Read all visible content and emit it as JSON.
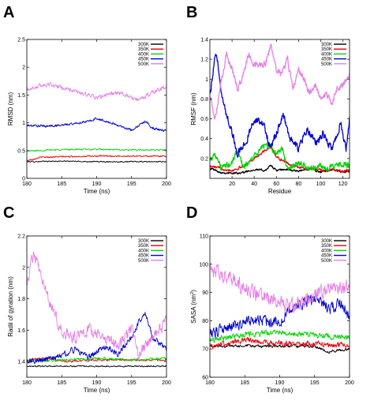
{
  "chart_data": [
    {
      "panel": "A",
      "type": "line",
      "xlabel": "Time (ns)",
      "ylabel": "RMSD (nm)",
      "ylabel_sup": "",
      "xlim": [
        180,
        200
      ],
      "ylim": [
        0,
        2.5
      ],
      "xticks": [
        180,
        185,
        190,
        195,
        200
      ],
      "yticks": [
        0,
        0.5,
        1,
        1.5,
        2,
        2.5
      ],
      "ytick_labels": [
        "0",
        "0.5",
        "1",
        "1.5",
        "2",
        "2.5"
      ],
      "series": [
        {
          "name": "300K",
          "color": "#000000",
          "amp": 0.015,
          "x": [
            180,
            185,
            190,
            195,
            200
          ],
          "y": [
            0.3,
            0.31,
            0.3,
            0.3,
            0.3
          ]
        },
        {
          "name": "350K",
          "color": "#e8000b",
          "amp": 0.02,
          "x": [
            180,
            182,
            185,
            190,
            195,
            200
          ],
          "y": [
            0.32,
            0.38,
            0.39,
            0.4,
            0.4,
            0.4
          ]
        },
        {
          "name": "400K",
          "color": "#00d400",
          "amp": 0.02,
          "x": [
            180,
            185,
            190,
            195,
            200
          ],
          "y": [
            0.49,
            0.52,
            0.52,
            0.51,
            0.51
          ]
        },
        {
          "name": "450K",
          "color": "#0000d0",
          "amp": 0.035,
          "x": [
            180,
            183,
            186,
            189,
            190,
            192,
            195,
            197,
            198,
            200
          ],
          "y": [
            0.95,
            0.94,
            0.97,
            1.03,
            1.08,
            1.0,
            0.87,
            1.03,
            0.9,
            0.85
          ]
        },
        {
          "name": "500K",
          "color": "#e67ee6",
          "amp": 0.06,
          "x": [
            180,
            183,
            186,
            190,
            193,
            196,
            198,
            200
          ],
          "y": [
            1.6,
            1.7,
            1.6,
            1.45,
            1.55,
            1.4,
            1.55,
            1.65
          ]
        }
      ]
    },
    {
      "panel": "B",
      "type": "line",
      "xlabel": "Residue",
      "ylabel": "RMSF (nm)",
      "ylabel_sup": "",
      "xlim": [
        0,
        126
      ],
      "ylim": [
        0,
        1.4
      ],
      "xticks": [
        20,
        40,
        60,
        80,
        100,
        120
      ],
      "yticks": [
        0.2,
        0.4,
        0.6,
        0.8,
        1,
        1.2,
        1.4
      ],
      "ytick_labels": [
        "0.2",
        "0.4",
        "0.6",
        "0.8",
        "1",
        "1.2",
        "1.4"
      ],
      "series": [
        {
          "name": "300K",
          "color": "#000000",
          "amp": 0.015,
          "x": [
            1,
            10,
            20,
            30,
            40,
            50,
            55,
            60,
            70,
            80,
            90,
            100,
            110,
            120,
            126
          ],
          "y": [
            0.1,
            0.06,
            0.05,
            0.06,
            0.09,
            0.08,
            0.13,
            0.08,
            0.09,
            0.07,
            0.1,
            0.06,
            0.09,
            0.06,
            0.07
          ]
        },
        {
          "name": "350K",
          "color": "#e8000b",
          "amp": 0.02,
          "x": [
            1,
            10,
            20,
            30,
            40,
            50,
            55,
            60,
            70,
            80,
            90,
            100,
            110,
            120,
            126
          ],
          "y": [
            0.12,
            0.1,
            0.08,
            0.12,
            0.2,
            0.28,
            0.32,
            0.22,
            0.15,
            0.11,
            0.1,
            0.08,
            0.09,
            0.07,
            0.08
          ]
        },
        {
          "name": "400K",
          "color": "#00d400",
          "amp": 0.05,
          "x": [
            1,
            5,
            10,
            20,
            25,
            30,
            40,
            50,
            60,
            65,
            70,
            80,
            90,
            100,
            110,
            120,
            126
          ],
          "y": [
            0.2,
            0.25,
            0.1,
            0.15,
            0.3,
            0.1,
            0.22,
            0.35,
            0.25,
            0.3,
            0.1,
            0.15,
            0.1,
            0.12,
            0.1,
            0.15,
            0.12
          ]
        },
        {
          "name": "450K",
          "color": "#0000d0",
          "amp": 0.06,
          "x": [
            1,
            5,
            8,
            12,
            18,
            25,
            32,
            40,
            48,
            55,
            60,
            66,
            72,
            80,
            88,
            95,
            102,
            110,
            118,
            123,
            126
          ],
          "y": [
            0.9,
            1.25,
            1.1,
            0.75,
            0.55,
            0.25,
            0.35,
            0.6,
            0.55,
            0.3,
            0.45,
            0.65,
            0.4,
            0.3,
            0.5,
            0.35,
            0.45,
            0.3,
            0.55,
            0.3,
            0.6
          ]
        },
        {
          "name": "500K",
          "color": "#e67ee6",
          "amp": 0.05,
          "x": [
            1,
            5,
            10,
            15,
            20,
            25,
            30,
            35,
            40,
            50,
            55,
            60,
            65,
            70,
            75,
            80,
            85,
            90,
            95,
            100,
            105,
            110,
            115,
            120,
            126
          ],
          "y": [
            0.8,
            0.6,
            0.95,
            1.25,
            1.1,
            0.9,
            1.05,
            1.25,
            1.15,
            1.15,
            1.35,
            1.1,
            1.05,
            1.2,
            0.9,
            1.1,
            1.0,
            0.85,
            0.95,
            0.8,
            0.85,
            0.75,
            0.9,
            0.95,
            1.05
          ]
        }
      ]
    },
    {
      "panel": "C",
      "type": "line",
      "xlabel": "Time (ns)",
      "ylabel": "Radii of gyration (nm)",
      "ylabel_sup": "",
      "xlim": [
        180,
        200
      ],
      "ylim": [
        1.3,
        2.2
      ],
      "xticks": [
        180,
        185,
        190,
        195,
        200
      ],
      "yticks": [
        1.4,
        1.6,
        1.8,
        2,
        2.2
      ],
      "ytick_labels": [
        "1.4",
        "1.6",
        "1.8",
        "2",
        "2.2"
      ],
      "series": [
        {
          "name": "300K",
          "color": "#000000",
          "amp": 0.006,
          "x": [
            180,
            185,
            190,
            195,
            200
          ],
          "y": [
            1.37,
            1.37,
            1.37,
            1.37,
            1.37
          ]
        },
        {
          "name": "350K",
          "color": "#e8000b",
          "amp": 0.01,
          "x": [
            180,
            183,
            186,
            190,
            195,
            200
          ],
          "y": [
            1.41,
            1.42,
            1.4,
            1.41,
            1.41,
            1.41
          ]
        },
        {
          "name": "400K",
          "color": "#00d400",
          "amp": 0.012,
          "x": [
            180,
            185,
            190,
            195,
            200
          ],
          "y": [
            1.4,
            1.41,
            1.42,
            1.41,
            1.42
          ]
        },
        {
          "name": "450K",
          "color": "#0000d0",
          "amp": 0.03,
          "x": [
            180,
            184,
            187,
            189,
            191,
            193,
            195,
            196,
            197,
            198,
            200
          ],
          "y": [
            1.4,
            1.42,
            1.48,
            1.43,
            1.5,
            1.45,
            1.55,
            1.65,
            1.7,
            1.55,
            1.48
          ]
        },
        {
          "name": "500K",
          "color": "#e67ee6",
          "amp": 0.06,
          "x": [
            180,
            181,
            182,
            183,
            184,
            185,
            187,
            189,
            191,
            193,
            195,
            196,
            198,
            200
          ],
          "y": [
            1.9,
            2.1,
            1.95,
            1.8,
            1.7,
            1.6,
            1.55,
            1.6,
            1.55,
            1.5,
            1.6,
            1.45,
            1.55,
            1.65
          ]
        }
      ]
    },
    {
      "panel": "D",
      "type": "line",
      "xlabel": "Time (ns)",
      "ylabel": "SASA (nm",
      "ylabel_sup": "2",
      "ylabel_end": ")",
      "xlim": [
        180,
        200
      ],
      "ylim": [
        60,
        110
      ],
      "xticks": [
        180,
        185,
        190,
        195,
        200
      ],
      "yticks": [
        60,
        70,
        80,
        90,
        100,
        110
      ],
      "ytick_labels": [
        "60",
        "70",
        "80",
        "90",
        "100",
        "110"
      ],
      "series": [
        {
          "name": "300K",
          "color": "#000000",
          "amp": 0.8,
          "x": [
            180,
            185,
            190,
            195,
            197,
            200
          ],
          "y": [
            71,
            71,
            71,
            71,
            69,
            70
          ]
        },
        {
          "name": "350K",
          "color": "#e8000b",
          "amp": 1.5,
          "x": [
            180,
            185,
            190,
            195,
            200
          ],
          "y": [
            71,
            73,
            72,
            72,
            71
          ]
        },
        {
          "name": "400K",
          "color": "#00d400",
          "amp": 1.5,
          "x": [
            180,
            185,
            190,
            195,
            200
          ],
          "y": [
            73,
            75,
            76,
            75,
            74
          ]
        },
        {
          "name": "450K",
          "color": "#0000d0",
          "amp": 3.0,
          "x": [
            180,
            183,
            186,
            190,
            192,
            195,
            197,
            199,
            200
          ],
          "y": [
            75,
            78,
            80,
            80,
            85,
            88,
            84,
            86,
            80
          ]
        },
        {
          "name": "500K",
          "color": "#e67ee6",
          "amp": 4.0,
          "x": [
            180,
            182,
            184,
            186,
            188,
            190,
            192,
            194,
            196,
            198,
            200
          ],
          "y": [
            98,
            96,
            93,
            90,
            88,
            86,
            85,
            88,
            90,
            92,
            92
          ]
        }
      ]
    }
  ]
}
